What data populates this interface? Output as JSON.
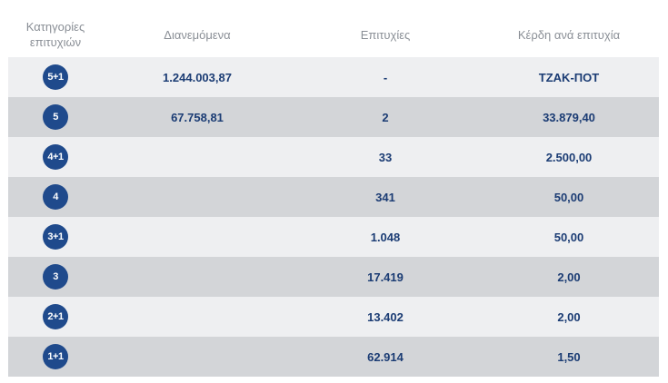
{
  "headers": {
    "category_line1": "Κατηγορίες",
    "category_line2": "επιτυχιών",
    "distributed": "Διανεμόμενα",
    "winners": "Επιτυχίες",
    "prize_per_winner": "Κέρδη ανά επιτυχία"
  },
  "colors": {
    "badge": "#1f4a8c",
    "value_text": "#1b3c74",
    "header_text": "#8a8f96",
    "row_light": "#eeeff1",
    "row_dark": "#d3d5d8"
  },
  "rows": [
    {
      "category": "5+1",
      "distributed": "1.244.003,87",
      "winners": "-",
      "prize": "ΤΖΑΚ-ΠΟΤ"
    },
    {
      "category": "5",
      "distributed": "67.758,81",
      "winners": "2",
      "prize": "33.879,40"
    },
    {
      "category": "4+1",
      "distributed": "",
      "winners": "33",
      "prize": "2.500,00"
    },
    {
      "category": "4",
      "distributed": "",
      "winners": "341",
      "prize": "50,00"
    },
    {
      "category": "3+1",
      "distributed": "",
      "winners": "1.048",
      "prize": "50,00"
    },
    {
      "category": "3",
      "distributed": "",
      "winners": "17.419",
      "prize": "2,00"
    },
    {
      "category": "2+1",
      "distributed": "",
      "winners": "13.402",
      "prize": "2,00"
    },
    {
      "category": "1+1",
      "distributed": "",
      "winners": "62.914",
      "prize": "1,50"
    }
  ]
}
